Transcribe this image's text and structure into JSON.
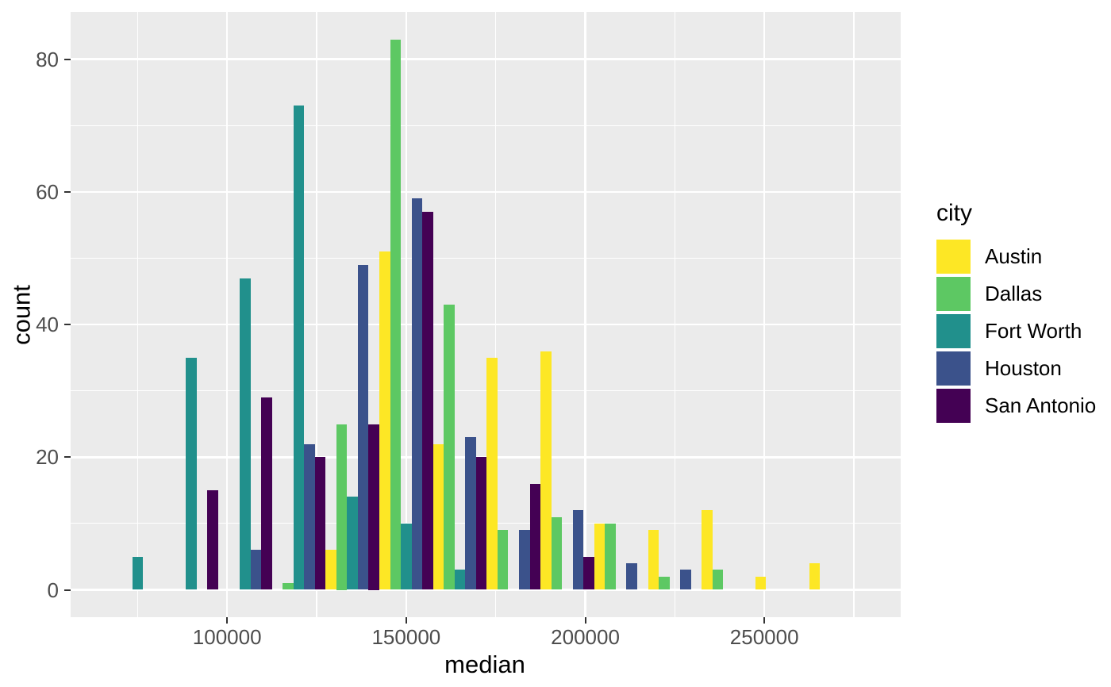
{
  "axes": {
    "x": {
      "title": "median",
      "ticks": [
        {
          "value": 100000,
          "label": "100000"
        },
        {
          "value": 150000,
          "label": "150000"
        },
        {
          "value": 200000,
          "label": "200000"
        },
        {
          "value": 250000,
          "label": "250000"
        }
      ],
      "minor_ticks": [
        75000,
        125000,
        175000,
        225000,
        275000
      ]
    },
    "y": {
      "title": "count",
      "ticks": [
        {
          "value": 0,
          "label": "0"
        },
        {
          "value": 20,
          "label": "20"
        },
        {
          "value": 40,
          "label": "40"
        },
        {
          "value": 60,
          "label": "60"
        },
        {
          "value": 80,
          "label": "80"
        }
      ],
      "minor_ticks": [
        10,
        30,
        50,
        70
      ]
    }
  },
  "legend": {
    "title": "city",
    "items": [
      {
        "label": "Austin",
        "color": "#FDE725"
      },
      {
        "label": "Dallas",
        "color": "#5DC863"
      },
      {
        "label": "Fort Worth",
        "color": "#21908C"
      },
      {
        "label": "Houston",
        "color": "#3B528B"
      },
      {
        "label": "San Antonio",
        "color": "#440154"
      }
    ]
  },
  "colors": {
    "panel_background": "#EBEBEB",
    "grid": "#FFFFFF",
    "tick_label": "#4D4D4D",
    "axis_title": "#000000"
  },
  "chart_data": {
    "type": "bar",
    "variant": "dodged-histogram",
    "title": "",
    "xlabel": "median",
    "ylabel": "count",
    "legend_title": "city",
    "legend_position": "right",
    "grid": true,
    "bin_width": 15000,
    "bar_slot_width": 3000,
    "bin_centers": [
      75000,
      90000,
      105000,
      120000,
      135000,
      150000,
      165000,
      180000,
      195000,
      210000,
      225000,
      240000,
      255000,
      270000
    ],
    "x_ticks": [
      100000,
      150000,
      200000,
      250000
    ],
    "y_ticks": [
      0,
      20,
      40,
      60,
      80
    ],
    "ylim": [
      0,
      87
    ],
    "xlim": [
      56500,
      288000
    ],
    "series": [
      {
        "name": "Austin",
        "color": "#FDE725",
        "values": [
          0,
          0,
          0,
          0,
          6,
          51,
          22,
          35,
          36,
          10,
          9,
          12,
          2,
          4
        ]
      },
      {
        "name": "Dallas",
        "color": "#5DC863",
        "values": [
          0,
          0,
          0,
          1,
          25,
          83,
          43,
          9,
          11,
          10,
          2,
          3,
          0,
          0
        ]
      },
      {
        "name": "Fort Worth",
        "color": "#21908C",
        "values": [
          5,
          35,
          47,
          73,
          14,
          10,
          3,
          0,
          0,
          0,
          0,
          0,
          0,
          0
        ]
      },
      {
        "name": "Houston",
        "color": "#3B528B",
        "values": [
          0,
          0,
          6,
          22,
          49,
          59,
          23,
          9,
          12,
          4,
          3,
          0,
          0,
          0
        ]
      },
      {
        "name": "San Antonio",
        "color": "#440154",
        "values": [
          0,
          15,
          29,
          20,
          25,
          57,
          20,
          16,
          5,
          0,
          0,
          0,
          0,
          0
        ]
      }
    ]
  }
}
